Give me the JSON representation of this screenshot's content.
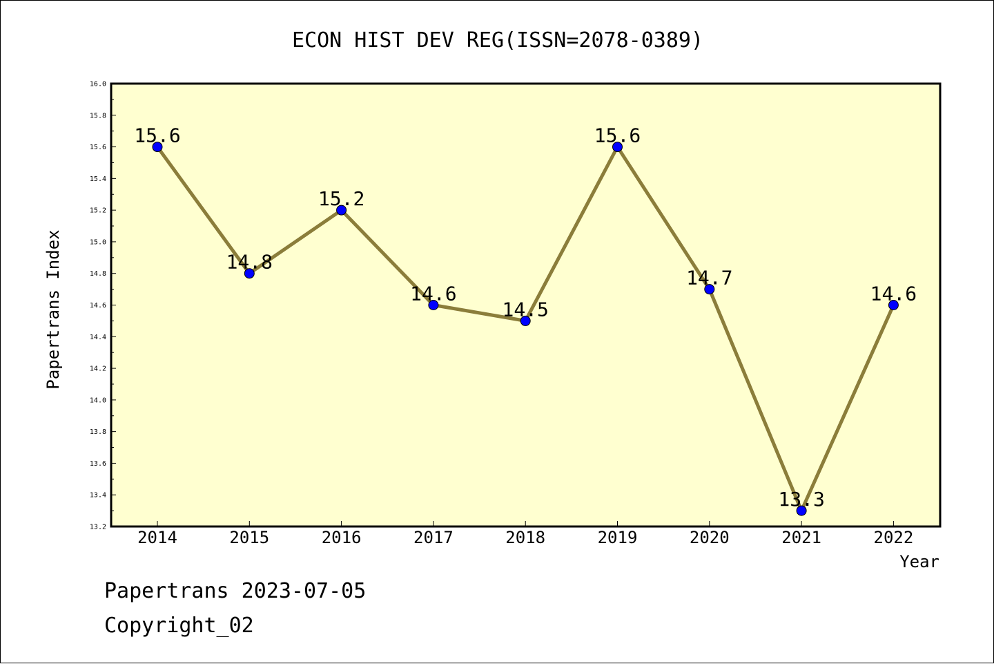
{
  "chart_data": {
    "type": "line",
    "title": "ECON HIST DEV REG(ISSN=2078-0389)",
    "xlabel": "Year",
    "ylabel": "Papertrans Index",
    "categories": [
      "2014",
      "2015",
      "2016",
      "2017",
      "2018",
      "2019",
      "2020",
      "2021",
      "2022"
    ],
    "values": [
      15.6,
      14.8,
      15.2,
      14.6,
      14.5,
      15.6,
      14.7,
      13.3,
      14.6
    ],
    "data_labels": [
      "15.6",
      "14.8",
      "15.2",
      "14.6",
      "14.5",
      "15.6",
      "14.7",
      "13.3",
      "14.6"
    ],
    "ylim": [
      13.2,
      16.0
    ],
    "yticks": [
      "13.2",
      "13.4",
      "13.6",
      "13.8",
      "14.0",
      "14.2",
      "14.4",
      "14.6",
      "14.8",
      "15.0",
      "15.2",
      "15.4",
      "15.6",
      "15.8",
      "16.0"
    ],
    "grid": false,
    "colors": {
      "plot_background": "#ffffd0",
      "line": "#8b7d3a",
      "marker": "#0000ff"
    }
  },
  "footer": {
    "line1": "Papertrans 2023-07-05",
    "line2": "Copyright_02"
  }
}
